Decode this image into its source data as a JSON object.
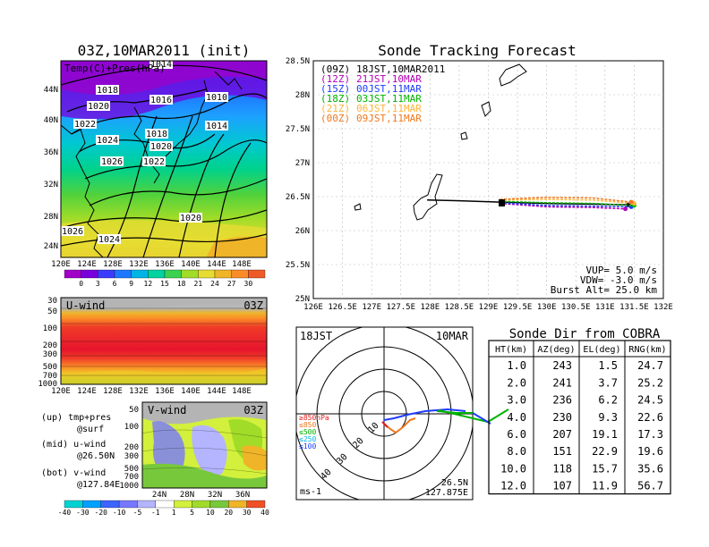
{
  "map_panel": {
    "title": "03Z,10MAR2011 (init)",
    "label": "Temp(C)+Pres(hPa)",
    "lat_ticks": [
      "44N",
      "40N",
      "36N",
      "32N",
      "28N",
      "24N"
    ],
    "lon_ticks": [
      "120E",
      "124E",
      "128E",
      "132E",
      "136E",
      "140E",
      "144E",
      "148E"
    ],
    "isobars": [
      "1014",
      "1018",
      "1016",
      "1010",
      "1020",
      "1022",
      "1014",
      "1024",
      "1018",
      "1020",
      "1026",
      "1022",
      "1020",
      "1026",
      "1024"
    ],
    "colorbar": [
      "0",
      "3",
      "6",
      "9",
      "12",
      "15",
      "18",
      "21",
      "24",
      "27",
      "30"
    ]
  },
  "u_panel": {
    "label": "U-wind",
    "time": "03Z",
    "p_ticks": [
      "30",
      "50",
      "100",
      "200",
      "300",
      "500",
      "700",
      "1000"
    ],
    "lon_ticks": [
      "120E",
      "124E",
      "128E",
      "132E",
      "136E",
      "140E",
      "144E",
      "148E"
    ]
  },
  "v_panel": {
    "label": "V-wind",
    "time": "03Z",
    "p_ticks": [
      "50",
      "100",
      "200",
      "300",
      "500",
      "700",
      "1000"
    ],
    "lat_ticks": [
      "24N",
      "28N",
      "32N",
      "36N"
    ],
    "colorbar": [
      "-40",
      "-30",
      "-20",
      "-10",
      "-5",
      "-1",
      "1",
      "5",
      "10",
      "20",
      "30",
      "40"
    ]
  },
  "legend_text": [
    [
      "(up) tmp+pres",
      "@surf"
    ],
    [
      "(mid) u-wind",
      "@26.50N"
    ],
    [
      "(bot) v-wind",
      "@127.84E"
    ]
  ],
  "track_panel": {
    "title": "Sonde Tracking Forecast",
    "legend": [
      {
        "code": "(09Z)",
        "time": "18JST,10MAR2011",
        "color": "#000000"
      },
      {
        "code": "(12Z)",
        "time": "21JST,10MAR",
        "color": "#b400b4"
      },
      {
        "code": "(15Z)",
        "time": "00JST,11MAR",
        "color": "#1e3cff"
      },
      {
        "code": "(18Z)",
        "time": "03JST,11MAR",
        "color": "#00b400"
      },
      {
        "code": "(21Z)",
        "time": "06JST,11MAR",
        "color": "#ffb43c"
      },
      {
        "code": "(00Z)",
        "time": "09JST,11MAR",
        "color": "#f07820"
      }
    ],
    "lat_ticks": [
      "28.5N",
      "28N",
      "27.5N",
      "27N",
      "26.5N",
      "26N",
      "25.5N",
      "25N"
    ],
    "lon_ticks": [
      "126E",
      "126.5E",
      "127E",
      "127.5E",
      "128E",
      "128.5E",
      "129E",
      "129.5E",
      "130E",
      "130.5E",
      "131E",
      "131.5E",
      "132E"
    ],
    "params": [
      "VUP= 5.0 m/s",
      "VDW= -3.0 m/s",
      "Burst Alt= 25.0 km"
    ]
  },
  "polar_panel": {
    "time": "18JST",
    "date": "10MAR",
    "levels": [
      "≥850hPa",
      "≤850",
      "≤500",
      "≤250",
      "≤100"
    ],
    "ring_labels": [
      "10",
      "20",
      "30",
      "40"
    ],
    "unit": "ms-1",
    "lat": "26.5N",
    "lon": "127.875E"
  },
  "table": {
    "title": "Sonde Dir from COBRA",
    "headers": [
      "HT(km)",
      "AZ(deg)",
      "EL(deg)",
      "RNG(km)"
    ],
    "rows": [
      [
        "1.0",
        "243",
        "1.5",
        "24.7"
      ],
      [
        "2.0",
        "241",
        "3.7",
        "25.2"
      ],
      [
        "3.0",
        "236",
        "6.2",
        "24.5"
      ],
      [
        "4.0",
        "230",
        "9.3",
        "22.6"
      ],
      [
        "6.0",
        "207",
        "19.1",
        "17.3"
      ],
      [
        "8.0",
        "151",
        "22.9",
        "19.6"
      ],
      [
        "10.0",
        "118",
        "15.7",
        "35.6"
      ],
      [
        "12.0",
        "107",
        "11.9",
        "56.7"
      ]
    ]
  },
  "colors": {
    "temp_scale": [
      "#a000c8",
      "#7800dc",
      "#3c3cff",
      "#1e78ff",
      "#00b4e6",
      "#00d2a0",
      "#3cd250",
      "#a0dc28",
      "#e6dc32",
      "#f0b428",
      "#fa8c28",
      "#f05a28"
    ],
    "v_scale": [
      "#00d2d2",
      "#00a0ff",
      "#3c64ff",
      "#7878ff",
      "#b4b4ff",
      "#ffffff",
      "#d2f03c",
      "#a0dc28",
      "#78c83c",
      "#f0b428",
      "#f05028"
    ]
  },
  "chart_data": [
    {
      "type": "table",
      "title": "Sonde Dir from COBRA",
      "columns": [
        "HT(km)",
        "AZ(deg)",
        "EL(deg)",
        "RNG(km)"
      ],
      "rows": [
        [
          1.0,
          243,
          1.5,
          24.7
        ],
        [
          2.0,
          241,
          3.7,
          25.2
        ],
        [
          3.0,
          236,
          6.2,
          24.5
        ],
        [
          4.0,
          230,
          9.3,
          22.6
        ],
        [
          6.0,
          207,
          19.1,
          17.3
        ],
        [
          8.0,
          151,
          22.9,
          19.6
        ],
        [
          10.0,
          118,
          15.7,
          35.6
        ],
        [
          12.0,
          107,
          11.9,
          56.7
        ]
      ]
    },
    {
      "type": "line",
      "title": "Sonde Tracking Forecast",
      "xlim": [
        126,
        132
      ],
      "ylim": [
        25,
        28.5
      ],
      "start": [
        129.2,
        26.42
      ],
      "series": [
        {
          "name": "(09Z) 18JST,10MAR2011",
          "color": "#000000",
          "points": [
            [
              127.95,
              26.45
            ],
            [
              128.5,
              26.44
            ],
            [
              129.2,
              26.42
            ],
            [
              130.0,
              26.4
            ],
            [
              130.8,
              26.39
            ],
            [
              131.4,
              26.38
            ]
          ]
        },
        {
          "name": "(12Z) 21JST,10MAR",
          "color": "#b400b4",
          "points": [
            [
              129.2,
              26.4
            ],
            [
              130.0,
              26.35
            ],
            [
              130.8,
              26.34
            ],
            [
              131.35,
              26.32
            ]
          ]
        },
        {
          "name": "(15Z) 00JST,11MAR",
          "color": "#1e3cff",
          "points": [
            [
              129.2,
              26.41
            ],
            [
              130.0,
              26.37
            ],
            [
              130.8,
              26.36
            ],
            [
              131.45,
              26.35
            ]
          ]
        },
        {
          "name": "(18Z) 03JST,11MAR",
          "color": "#00b400",
          "points": [
            [
              129.2,
              26.43
            ],
            [
              130.0,
              26.41
            ],
            [
              130.8,
              26.4
            ],
            [
              131.5,
              26.37
            ]
          ]
        },
        {
          "name": "(21Z) 06JST,11MAR",
          "color": "#ffb43c",
          "points": [
            [
              129.2,
              26.45
            ],
            [
              130.0,
              26.46
            ],
            [
              130.8,
              26.45
            ],
            [
              131.5,
              26.4
            ]
          ]
        },
        {
          "name": "(00Z) 09JST,11MAR",
          "color": "#f07820",
          "points": [
            [
              129.2,
              26.46
            ],
            [
              130.0,
              26.49
            ],
            [
              130.8,
              26.48
            ],
            [
              131.45,
              26.42
            ]
          ]
        }
      ]
    }
  ]
}
